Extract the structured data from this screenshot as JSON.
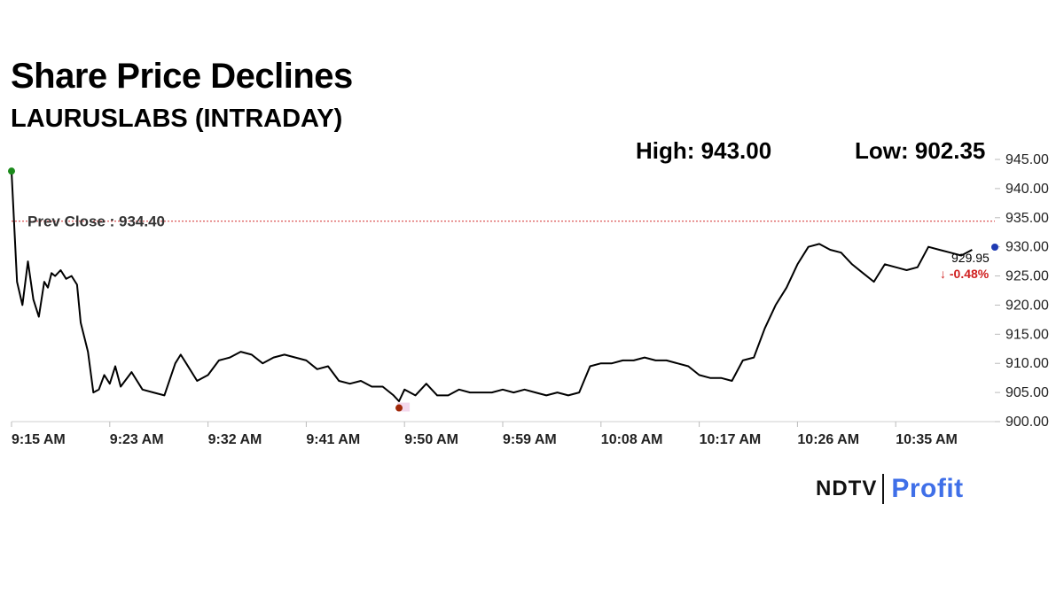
{
  "header": {
    "title": "Share Price Declines",
    "subtitle": "LAURUSLABS (INTRADAY)",
    "high_text": "High: 943.00",
    "low_text": "Low: 902.35"
  },
  "logo": {
    "ndtv": "NDTV",
    "profit": "Profit"
  },
  "colors": {
    "line": "#000000",
    "prev_close_line": "#d22c2c",
    "high_dot": "#1a8a1a",
    "low_dot": "#a02808",
    "last_dot": "#1f3bb3",
    "change": "#d02020",
    "logo_profit": "#3f6fe8"
  },
  "chart_data": {
    "type": "line",
    "title": "Share Price Declines",
    "subtitle": "LAURUSLABS (INTRADAY)",
    "xlabel": "",
    "ylabel": "",
    "ylim": [
      900,
      945
    ],
    "x_ticks": [
      "9:15 AM",
      "9:23 AM",
      "9:32 AM",
      "9:41 AM",
      "9:50 AM",
      "9:59 AM",
      "10:08 AM",
      "10:17 AM",
      "10:26 AM",
      "10:35 AM"
    ],
    "y_ticks": [
      "900.00",
      "905.00",
      "910.00",
      "915.00",
      "920.00",
      "925.00",
      "930.00",
      "935.00",
      "940.00",
      "945.00"
    ],
    "prev_close": 934.4,
    "prev_close_label": "Prev Close : 934.40",
    "high": 943.0,
    "low": 902.35,
    "last_price_label": "929.95",
    "change_label": "-0.48%",
    "series": [
      {
        "name": "LAURUSLABS",
        "x": [
          "9:15",
          "9:15",
          "9:16",
          "9:16",
          "9:17",
          "9:17",
          "9:18",
          "9:18",
          "9:18",
          "9:19",
          "9:19",
          "9:20",
          "9:20",
          "9:21",
          "9:21",
          "9:21",
          "9:22",
          "9:22",
          "9:23",
          "9:23",
          "9:24",
          "9:24",
          "9:25",
          "9:26",
          "9:27",
          "9:28",
          "9:29",
          "9:30",
          "9:30",
          "9:31",
          "9:32",
          "9:33",
          "9:34",
          "9:35",
          "9:36",
          "9:37",
          "9:38",
          "9:39",
          "9:40",
          "9:41",
          "9:42",
          "9:43",
          "9:44",
          "9:45",
          "9:46",
          "9:47",
          "9:48",
          "9:49",
          "9:50",
          "9:50",
          "9:51",
          "9:52",
          "9:53",
          "9:54",
          "9:55",
          "9:56",
          "9:57",
          "9:58",
          "9:59",
          "10:00",
          "10:01",
          "10:02",
          "10:03",
          "10:04",
          "10:05",
          "10:06",
          "10:07",
          "10:08",
          "10:09",
          "10:10",
          "10:11",
          "10:12",
          "10:13",
          "10:14",
          "10:15",
          "10:16",
          "10:17",
          "10:18",
          "10:19",
          "10:20",
          "10:21",
          "10:22",
          "10:23",
          "10:24",
          "10:25",
          "10:26",
          "10:27",
          "10:28",
          "10:29",
          "10:30",
          "10:31",
          "10:32",
          "10:33",
          "10:34",
          "10:35",
          "10:36",
          "10:37",
          "10:38",
          "10:39",
          "10:40",
          "10:41",
          "10:42",
          "10:43"
        ],
        "y": [
          943.0,
          924.0,
          920.0,
          927.5,
          921.0,
          918.0,
          924.0,
          923.0,
          925.5,
          925.0,
          926.0,
          924.5,
          925.0,
          923.5,
          917.0,
          914.5,
          912.0,
          905.0,
          905.5,
          908.0,
          906.5,
          909.5,
          906.0,
          908.5,
          905.5,
          905.0,
          904.5,
          910.0,
          911.5,
          910.0,
          907.0,
          908.0,
          910.5,
          911.0,
          912.0,
          911.5,
          910.0,
          911.0,
          911.5,
          911.0,
          910.5,
          909.0,
          909.5,
          907.0,
          906.5,
          907.0,
          906.0,
          906.0,
          904.5,
          903.5,
          905.5,
          904.5,
          906.5,
          904.5,
          904.5,
          905.5,
          905.0,
          905.0,
          905.0,
          905.5,
          905.0,
          905.5,
          905.0,
          904.5,
          905.0,
          904.5,
          905.0,
          909.5,
          910.0,
          910.0,
          910.5,
          910.5,
          911.0,
          910.5,
          910.5,
          910.0,
          909.5,
          908.0,
          907.5,
          907.5,
          907.0,
          910.5,
          911.0,
          916.0,
          920.0,
          923.0,
          927.0,
          930.0,
          930.5,
          929.5,
          929.0,
          927.0,
          925.5,
          924.0,
          927.0,
          926.5,
          926.0,
          926.5,
          930.0,
          929.5,
          929.0,
          928.5,
          929.5
        ]
      }
    ],
    "legend": "none",
    "grid": false
  }
}
